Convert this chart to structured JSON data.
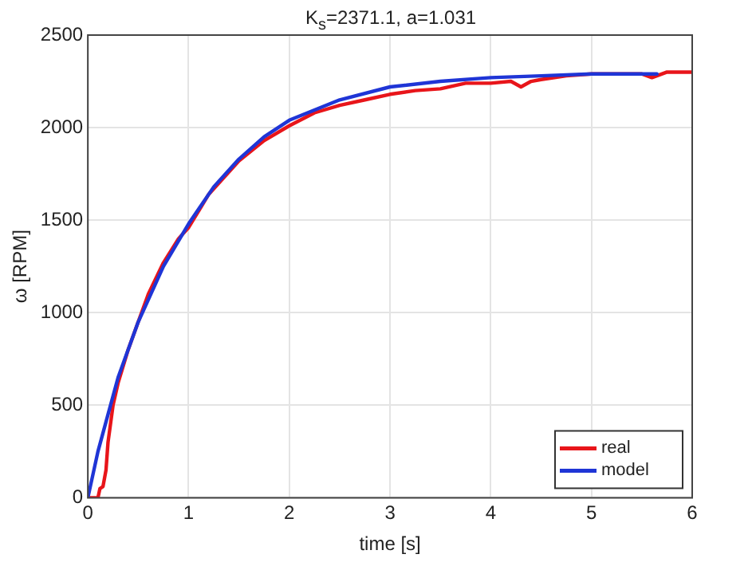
{
  "chart_data": {
    "type": "line",
    "title": "K$_{s}$=2371.1, a=1.031",
    "xlabel": "time [s]",
    "ylabel": "ω [RPM]",
    "xlim": [
      0,
      6
    ],
    "xticks": [
      0,
      1,
      2,
      3,
      4,
      5,
      6
    ],
    "ylim": [
      0,
      2500
    ],
    "yticks": [
      0,
      500,
      1000,
      1500,
      2000,
      2500
    ],
    "grid": true,
    "legend": "bottom right",
    "marker": "none",
    "line_style": "solid",
    "series": [
      {
        "name": "real",
        "color": "#e8151a",
        "x": [
          0,
          0.1,
          0.12,
          0.15,
          0.18,
          0.2,
          0.22,
          0.25,
          0.3,
          0.4,
          0.5,
          0.6,
          0.75,
          0.9,
          1,
          1.2,
          1.5,
          1.75,
          2,
          2.25,
          2.5,
          2.75,
          3,
          3.25,
          3.5,
          3.75,
          4,
          4.2,
          4.3,
          4.4,
          4.5,
          4.75,
          5,
          5.25,
          5.5,
          5.6,
          5.75,
          6
        ],
        "values": [
          0,
          0,
          50,
          60,
          150,
          300,
          380,
          500,
          620,
          800,
          950,
          1100,
          1270,
          1400,
          1460,
          1640,
          1820,
          1930,
          2010,
          2080,
          2120,
          2150,
          2180,
          2200,
          2210,
          2240,
          2240,
          2250,
          2220,
          2250,
          2260,
          2280,
          2290,
          2290,
          2290,
          2270,
          2300,
          2300
        ]
      },
      {
        "name": "model",
        "color": "#1f35d6",
        "x": [
          0,
          0.1,
          0.2,
          0.3,
          0.5,
          0.75,
          1,
          1.25,
          1.5,
          1.75,
          2,
          2.5,
          3,
          3.5,
          4,
          4.5,
          5,
          5.65
        ],
        "values": [
          0,
          250,
          450,
          650,
          950,
          1250,
          1480,
          1680,
          1830,
          1950,
          2040,
          2150,
          2220,
          2250,
          2270,
          2280,
          2290,
          2290
        ]
      }
    ]
  }
}
